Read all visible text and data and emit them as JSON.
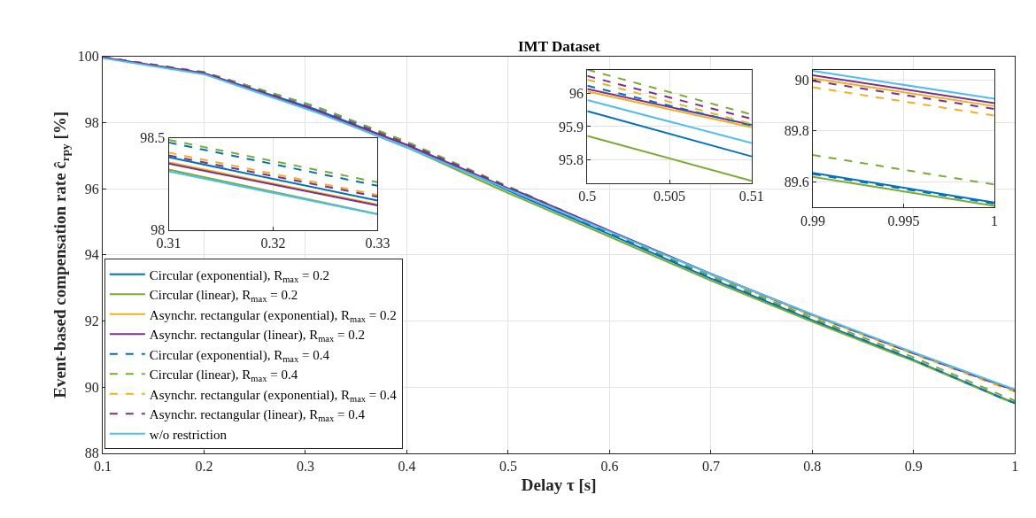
{
  "chart_data": [
    {
      "type": "line",
      "title": "IMT Dataset",
      "xlabel": "Delay τ [s]",
      "ylabel": "Event-based compensation rate ĉ$_{rpy}$ [%]",
      "x": [
        0.1,
        0.2,
        0.31,
        0.33,
        0.4,
        0.5,
        0.51,
        0.6,
        0.7,
        0.8,
        0.9,
        0.99,
        1.0
      ],
      "xlim": [
        0.1,
        1
      ],
      "ylim": [
        88,
        100
      ],
      "xticks": [
        0.1,
        0.2,
        0.3,
        0.4,
        0.5,
        0.6,
        0.7,
        0.8,
        0.9,
        1
      ],
      "yticks": [
        88,
        90,
        92,
        94,
        96,
        98,
        100
      ],
      "grid": true,
      "legend": "bottom left",
      "marker": "none",
      "series": [
        {
          "name": "Circular (exponential), R$_{max}$ = 0.2",
          "color": "#0072bd",
          "line_style": "solid",
          "values": [
            99.97,
            99.49,
            98.4,
            98.16,
            97.32,
            95.95,
            95.81,
            94.62,
            93.28,
            92.02,
            90.82,
            89.64,
            89.52
          ]
        },
        {
          "name": "Circular (linear), R$_{max}$ = 0.2",
          "color": "#77ac30",
          "line_style": "solid",
          "values": [
            99.97,
            99.48,
            98.33,
            98.09,
            97.25,
            95.87,
            95.74,
            94.55,
            93.22,
            91.98,
            90.79,
            89.62,
            89.51
          ]
        },
        {
          "name": "Asynchr. rectangular (exponential), R$_{max}$ = 0.2",
          "color": "#edb120",
          "line_style": "solid",
          "values": [
            null,
            null,
            null,
            null,
            null,
            null,
            null,
            null,
            93.42,
            92.18,
            91.02,
            90.01,
            89.9
          ]
        },
        {
          "name": "Asynchr. rectangular (linear), R$_{max}$ = 0.2",
          "color": "#7e2f8e",
          "line_style": "solid",
          "values": [
            99.97,
            99.49,
            98.36,
            98.13,
            97.33,
            96.01,
            95.91,
            94.73,
            93.43,
            92.19,
            91.03,
            90.02,
            89.91
          ]
        },
        {
          "name": "Circular (exponential), R$_{max}$ = 0.4",
          "color": "#0072bd",
          "line_style": "dashed",
          "values": [
            99.98,
            99.52,
            98.48,
            98.24,
            97.4,
            96.02,
            95.9,
            94.66,
            93.31,
            92.04,
            90.83,
            89.63,
            89.52
          ]
        },
        {
          "name": "Circular (linear), R$_{max}$ = 0.4",
          "color": "#77ac30",
          "line_style": "dashed",
          "values": [
            99.98,
            99.53,
            98.49,
            98.26,
            97.42,
            96.07,
            95.94,
            94.7,
            93.36,
            92.1,
            90.9,
            89.71,
            89.59
          ]
        },
        {
          "name": "Asynchr. rectangular (exponential), R$_{max}$ = 0.4",
          "color": "#edb120",
          "line_style": "dashed",
          "values": [
            null,
            null,
            null,
            null,
            null,
            null,
            null,
            null,
            93.4,
            92.16,
            91.0,
            89.97,
            89.86
          ]
        },
        {
          "name": "Asynchr. rectangular (linear), R$_{max}$ = 0.4",
          "color": "#7e2f8e",
          "line_style": "dashed",
          "values": [
            99.98,
            99.51,
            98.41,
            98.18,
            97.36,
            96.05,
            95.92,
            94.72,
            93.42,
            92.18,
            91.02,
            90.0,
            89.89
          ]
        },
        {
          "name": "w/o restriction",
          "color": "#4dbeee",
          "line_style": "solid",
          "values": [
            99.95,
            99.46,
            98.32,
            98.09,
            97.25,
            95.98,
            95.85,
            94.7,
            93.42,
            92.2,
            91.05,
            90.04,
            89.93
          ]
        }
      ]
    },
    {
      "type": "line",
      "x": [
        0.31,
        0.33
      ],
      "xlim": [
        0.31,
        0.33
      ],
      "ylim": [
        98,
        98.5
      ],
      "xticks": [
        0.31,
        0.32,
        0.33
      ],
      "yticks": [
        98,
        98.5
      ],
      "grid": true,
      "marker": "none",
      "series": [
        {
          "color": "#0072bd",
          "line_style": "solid",
          "values": [
            98.395,
            98.16
          ]
        },
        {
          "color": "#77ac30",
          "line_style": "solid",
          "values": [
            98.328,
            98.087
          ]
        },
        {
          "color": "#edb120",
          "line_style": "solid",
          "values": [
            98.367,
            98.138
          ]
        },
        {
          "color": "#7e2f8e",
          "line_style": "solid",
          "values": [
            98.36,
            98.133
          ]
        },
        {
          "color": "#0072bd",
          "line_style": "dashed",
          "values": [
            98.475,
            98.24
          ]
        },
        {
          "color": "#77ac30",
          "line_style": "dashed",
          "values": [
            98.489,
            98.259
          ]
        },
        {
          "color": "#edb120",
          "line_style": "dashed",
          "values": [
            98.42,
            98.19
          ]
        },
        {
          "color": "#7e2f8e",
          "line_style": "dashed",
          "values": [
            98.405,
            98.18
          ]
        },
        {
          "color": "#4dbeee",
          "line_style": "solid",
          "values": [
            98.318,
            98.085
          ]
        }
      ]
    },
    {
      "type": "line",
      "x": [
        0.5,
        0.51
      ],
      "xlim": [
        0.5,
        0.51
      ],
      "ylim": [
        95.73,
        96.07
      ],
      "xticks": [
        0.5,
        0.505,
        0.51
      ],
      "yticks": [
        95.8,
        95.9,
        96
      ],
      "grid": true,
      "marker": "none",
      "series": [
        {
          "color": "#0072bd",
          "line_style": "solid",
          "values": [
            95.946,
            95.811
          ]
        },
        {
          "color": "#77ac30",
          "line_style": "solid",
          "values": [
            95.872,
            95.738
          ]
        },
        {
          "color": "#edb120",
          "line_style": "solid",
          "values": [
            96.005,
            95.898
          ]
        },
        {
          "color": "#7e2f8e",
          "line_style": "solid",
          "values": [
            96.012,
            95.905
          ]
        },
        {
          "color": "#0072bd",
          "line_style": "dashed",
          "values": [
            96.022,
            95.903
          ]
        },
        {
          "color": "#77ac30",
          "line_style": "dashed",
          "values": [
            96.07,
            95.936
          ]
        },
        {
          "color": "#edb120",
          "line_style": "dashed",
          "values": [
            96.04,
            95.908
          ]
        },
        {
          "color": "#7e2f8e",
          "line_style": "dashed",
          "values": [
            96.051,
            95.923
          ]
        },
        {
          "color": "#4dbeee",
          "line_style": "solid",
          "values": [
            95.979,
            95.851
          ]
        }
      ]
    },
    {
      "type": "line",
      "x": [
        0.99,
        1.0
      ],
      "xlim": [
        0.99,
        1
      ],
      "ylim": [
        89.5,
        90.04
      ],
      "xticks": [
        0.99,
        0.995,
        1
      ],
      "yticks": [
        89.6,
        89.8,
        90
      ],
      "grid": true,
      "marker": "none",
      "series": [
        {
          "color": "#0072bd",
          "line_style": "solid",
          "values": [
            89.636,
            89.52
          ]
        },
        {
          "color": "#77ac30",
          "line_style": "solid",
          "values": [
            89.62,
            89.507
          ]
        },
        {
          "color": "#edb120",
          "line_style": "solid",
          "values": [
            90.006,
            89.897
          ]
        },
        {
          "color": "#7e2f8e",
          "line_style": "solid",
          "values": [
            90.018,
            89.909
          ]
        },
        {
          "color": "#0072bd",
          "line_style": "dashed",
          "values": [
            89.631,
            89.515
          ]
        },
        {
          "color": "#77ac30",
          "line_style": "dashed",
          "values": [
            89.706,
            89.59
          ]
        },
        {
          "color": "#edb120",
          "line_style": "dashed",
          "values": [
            89.971,
            89.86
          ]
        },
        {
          "color": "#7e2f8e",
          "line_style": "dashed",
          "values": [
            89.996,
            89.886
          ]
        },
        {
          "color": "#4dbeee",
          "line_style": "solid",
          "values": [
            90.035,
            89.926
          ]
        }
      ]
    }
  ]
}
